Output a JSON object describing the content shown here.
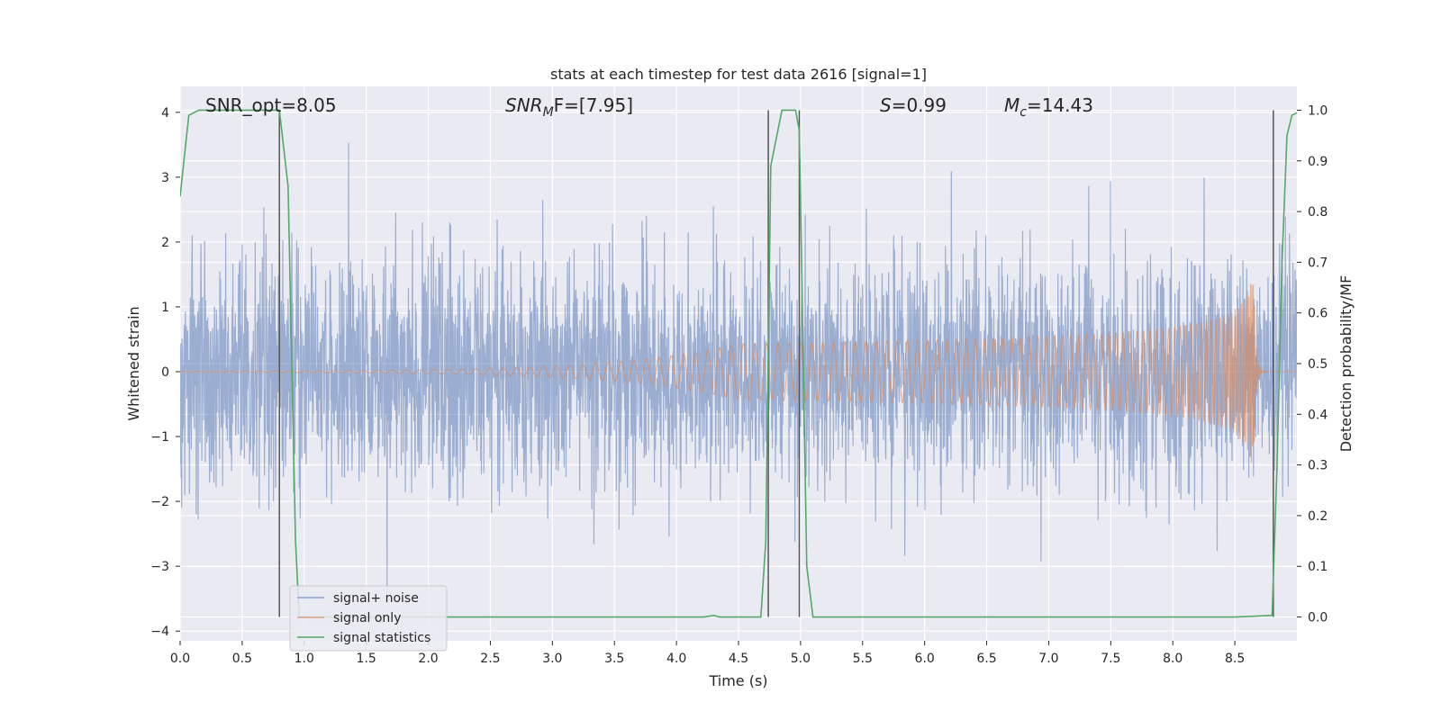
{
  "chart_data": {
    "type": "line",
    "title": "stats at each timestep for test data 2616 [signal=1]",
    "xlabel": "Time (s)",
    "ylabel_left": "Whitened strain",
    "ylabel_right": "Detection probability/MF",
    "xlim": [
      0.0,
      9.0
    ],
    "ylim_left": [
      -4.15,
      4.4
    ],
    "ylim_right": [
      -0.047,
      1.047
    ],
    "x_ticks": [
      "0.0",
      "0.5",
      "1.0",
      "1.5",
      "2.0",
      "2.5",
      "3.0",
      "3.5",
      "4.0",
      "4.5",
      "5.0",
      "5.5",
      "6.0",
      "6.5",
      "7.0",
      "7.5",
      "8.0",
      "8.5"
    ],
    "y_ticks_left": [
      "4",
      "3",
      "2",
      "1",
      "0",
      "−1",
      "−2",
      "−3",
      "−4"
    ],
    "y_ticks_right": [
      "1.0",
      "0.9",
      "0.8",
      "0.7",
      "0.6",
      "0.5",
      "0.4",
      "0.3",
      "0.2",
      "0.1",
      "0.0"
    ],
    "grid": true,
    "legend_position": "lower-left",
    "annotations": {
      "snr_opt": "SNR_opt=8.05",
      "snr_mf_main": "SNR",
      "snr_mf_sub": "M",
      "snr_mf_rest": "F=[7.95]",
      "s_sym": "S",
      "s_rest": "=0.99",
      "mc_sym": "M",
      "mc_sub": "c",
      "mc_rest": "=14.43"
    },
    "series": [
      {
        "name": "signal+ noise",
        "color": "#4c72b0",
        "axis": "left",
        "description_values": {
          "typical_abs_amplitude": 1.6,
          "max": 4.0,
          "min": -3.8
        }
      },
      {
        "name": "signal only",
        "color": "#dd8452",
        "axis": "left",
        "chirp": {
          "start_time": 4.5,
          "merger_time": 8.65,
          "peak_amplitude": 1.65
        }
      },
      {
        "name": "signal statistics",
        "color": "#55a868",
        "axis": "right",
        "x": [
          0.0,
          0.07,
          0.15,
          0.6,
          0.8,
          0.87,
          0.93,
          0.96,
          1.0,
          1.5,
          2.0,
          3.0,
          4.0,
          4.22,
          4.3,
          4.35,
          4.68,
          4.72,
          4.76,
          4.85,
          4.96,
          4.99,
          5.05,
          5.1,
          5.13,
          5.5,
          6.0,
          7.0,
          8.0,
          8.5,
          8.8,
          8.84,
          8.88,
          8.92,
          8.96,
          9.0
        ],
        "y": [
          0.83,
          0.99,
          1.0,
          1.0,
          1.0,
          0.85,
          0.15,
          0.0,
          0.0,
          0.0,
          0.0,
          0.0,
          0.0,
          0.0,
          0.003,
          0.0,
          0.0,
          0.15,
          0.89,
          1.0,
          1.0,
          0.96,
          0.1,
          0.0,
          0.0,
          0.0,
          0.0,
          0.0,
          0.0,
          0.0,
          0.003,
          0.3,
          0.7,
          0.95,
          0.99,
          0.995
        ]
      }
    ],
    "vertical_lines_x": [
      0.8,
      4.74,
      4.99,
      8.81
    ]
  }
}
